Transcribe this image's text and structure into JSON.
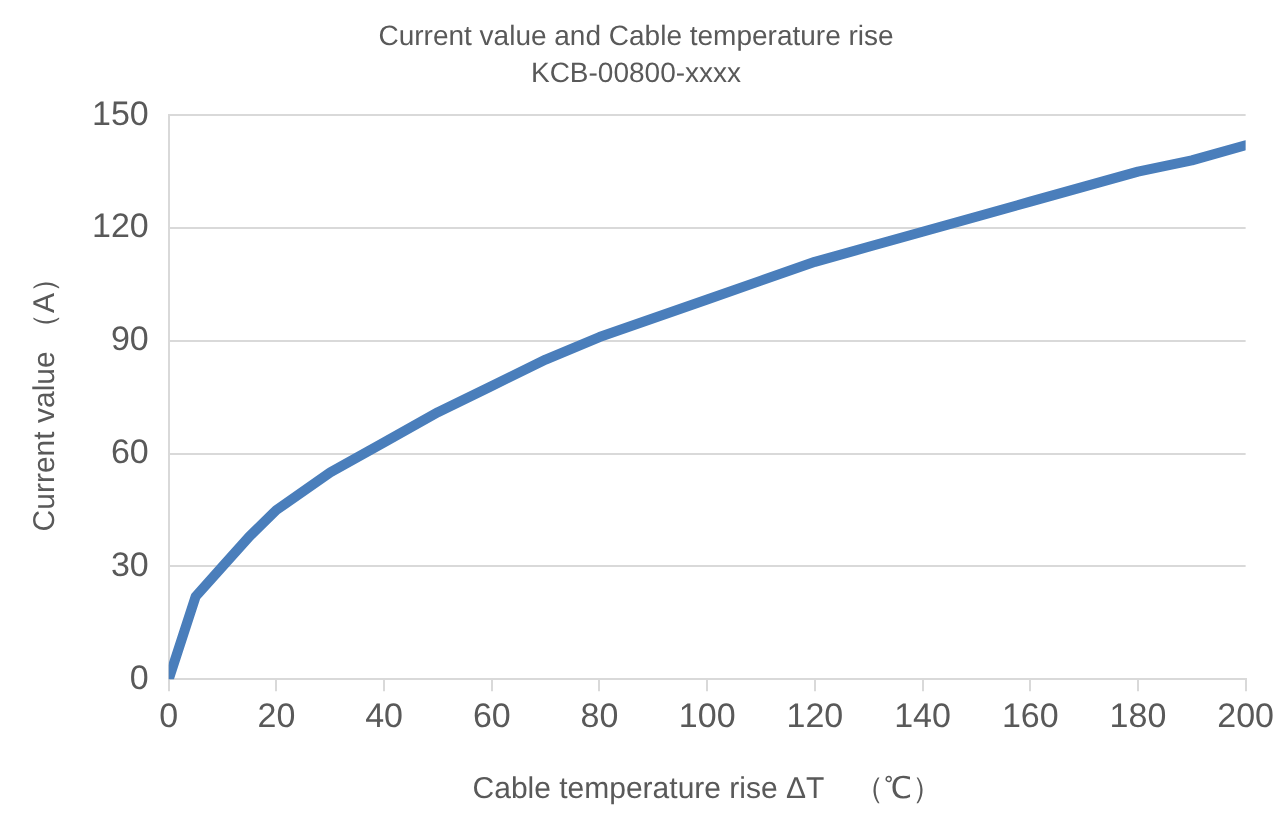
{
  "chart_data": {
    "type": "line",
    "title": "Current value and Cable temperature rise",
    "subtitle": "KCB-00800-xxxx",
    "xlabel": "Cable temperature rise ΔT　（℃）",
    "ylabel": "Current value （A）",
    "x": [
      0,
      5,
      10,
      15,
      20,
      30,
      40,
      50,
      60,
      70,
      80,
      90,
      100,
      110,
      120,
      130,
      140,
      150,
      160,
      170,
      180,
      190,
      200
    ],
    "series": [
      {
        "color": "#4a7ebb",
        "values": [
          0,
          22,
          30,
          38,
          45,
          55,
          63,
          71,
          78,
          85,
          91,
          96,
          101,
          106,
          111,
          115,
          119,
          123,
          127,
          131,
          135,
          138,
          142
        ]
      }
    ],
    "xlim": [
      0,
      200
    ],
    "xticks": [
      0,
      20,
      40,
      60,
      80,
      100,
      120,
      140,
      160,
      180,
      200
    ],
    "ylim": [
      0,
      150
    ],
    "yticks": [
      0,
      30,
      60,
      90,
      120,
      150
    ],
    "grid": "y",
    "legend": false,
    "marker": "none",
    "line_style": "solid"
  }
}
